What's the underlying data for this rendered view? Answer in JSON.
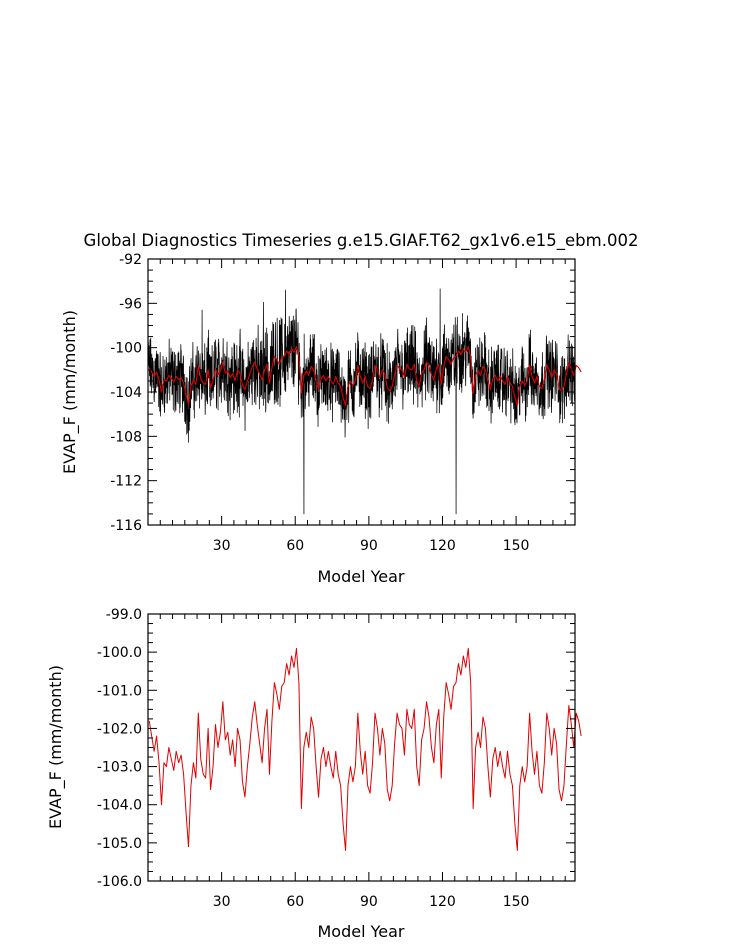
{
  "chart_data": [
    {
      "type": "line",
      "title": "Global Diagnostics Timeseries g.e15.GIAF.T62_gx1v6.e15_ebm.002",
      "xlabel": "Model Year",
      "ylabel": "EVAP_F (mm/month)",
      "xlim": [
        0,
        174
      ],
      "ylim": [
        -116,
        -92
      ],
      "xticks": [
        30,
        60,
        90,
        120,
        150
      ],
      "xtick_labels": [
        "30",
        "60",
        "90",
        "120",
        "150"
      ],
      "yticks": [
        -116,
        -112,
        -108,
        -104,
        -100,
        -96,
        -92
      ],
      "ytick_labels": [
        "-116",
        "-112",
        "-108",
        "-104",
        "-100",
        "-96",
        "-92"
      ],
      "grid": false,
      "series": [
        {
          "color": "#000000",
          "style": "monthly",
          "values_note": "",
          "annual_mean_source": "series 1 of chart 2",
          "amplitude_levels": [
            [
              0,
              3.2
            ],
            [
              20,
              3.5
            ],
            [
              40,
              3.8
            ],
            [
              55,
              4.2
            ],
            [
              62,
              4.0
            ],
            [
              66,
              3.4
            ],
            [
              80,
              3.4
            ],
            [
              100,
              3.6
            ],
            [
              118,
              4.0
            ],
            [
              124,
              3.8
            ],
            [
              128,
              3.4
            ],
            [
              150,
              3.4
            ],
            [
              174,
              3.4
            ]
          ],
          "spikes": [
            [
              63.5,
              -115.0
            ],
            [
              125.5,
              -115.0
            ],
            [
              56,
              -94.8
            ],
            [
              119,
              -94.7
            ],
            [
              22,
              -96.6
            ],
            [
              47,
              -95.9
            ]
          ]
        },
        {
          "color": "#e00000",
          "style": "annual",
          "same_as": "chart 2 series 1"
        }
      ]
    },
    {
      "type": "line",
      "title": "",
      "xlabel": "Model Year",
      "ylabel": "EVAP_F (mm/month)",
      "xlim": [
        0,
        174
      ],
      "ylim": [
        -106,
        -99
      ],
      "xticks": [
        30,
        60,
        90,
        120,
        150
      ],
      "xtick_labels": [
        "30",
        "60",
        "90",
        "120",
        "150"
      ],
      "yticks": [
        -106,
        -105,
        -104,
        -103,
        -102,
        -101,
        -100,
        -99
      ],
      "ytick_labels": [
        "-106.0",
        "-105.0",
        "-104.0",
        "-103.0",
        "-102.0",
        "-101.0",
        "-100.0",
        "-99.0"
      ],
      "grid": false,
      "series": [
        {
          "color": "#e00000",
          "x_start": 0.5,
          "x_step": 1,
          "values": [
            -101.8,
            -102.2,
            -102.6,
            -102.2,
            -102.9,
            -104.0,
            -102.9,
            -103.0,
            -102.5,
            -102.8,
            -103.1,
            -102.6,
            -102.9,
            -102.7,
            -103.2,
            -104.2,
            -105.1,
            -103.5,
            -102.9,
            -103.3,
            -101.6,
            -102.8,
            -103.2,
            -103.3,
            -102.0,
            -103.6,
            -103.0,
            -101.9,
            -102.5,
            -102.1,
            -101.3,
            -102.3,
            -102.1,
            -102.7,
            -102.3,
            -103.0,
            -102.0,
            -102.3,
            -103.4,
            -103.8,
            -103.0,
            -102.4,
            -101.7,
            -101.3,
            -101.9,
            -102.4,
            -102.9,
            -102.0,
            -101.5,
            -103.2,
            -101.8,
            -100.8,
            -101.1,
            -101.5,
            -100.9,
            -100.8,
            -100.3,
            -100.6,
            -100.1,
            -100.4,
            -99.9,
            -100.8,
            -104.1,
            -102.5,
            -102.1,
            -102.5,
            -101.7,
            -102.0,
            -103.0,
            -103.8,
            -102.8,
            -102.5,
            -103.0,
            -102.6,
            -103.0,
            -103.3,
            -102.6,
            -103.2,
            -103.5,
            -104.5,
            -105.2,
            -103.5,
            -103.0,
            -103.4,
            -103.0,
            -101.6,
            -102.6,
            -103.2,
            -102.6,
            -103.5,
            -103.7,
            -102.9,
            -101.6,
            -102.0,
            -102.7,
            -102.0,
            -102.4,
            -103.6,
            -103.9,
            -103.5,
            -102.4,
            -101.6,
            -101.9,
            -102.0,
            -102.7,
            -101.5,
            -101.9,
            -102.0,
            -101.5,
            -103.0,
            -103.5,
            -102.3,
            -102.0,
            -101.3,
            -101.7,
            -102.5,
            -102.9,
            -101.9,
            -101.5,
            -103.3,
            -101.7,
            -100.8,
            -101.1,
            -101.5,
            -100.9,
            -100.8,
            -100.3,
            -100.6,
            -100.1,
            -100.4,
            -99.9,
            -100.8,
            -104.1,
            -102.5,
            -102.1,
            -102.5,
            -101.7,
            -102.0,
            -103.0,
            -103.8,
            -102.8,
            -102.5,
            -103.0,
            -102.6,
            -103.0,
            -103.3,
            -102.6,
            -103.2,
            -103.5,
            -104.5,
            -105.2,
            -103.5,
            -103.0,
            -103.4,
            -103.0,
            -101.6,
            -102.6,
            -103.2,
            -102.6,
            -103.5,
            -103.7,
            -102.9,
            -101.6,
            -102.0,
            -102.7,
            -102.0,
            -102.4,
            -103.6,
            -103.9,
            -103.5,
            -102.4,
            -101.4,
            -101.9,
            -102.5,
            -101.6,
            -101.8,
            -102.2
          ]
        }
      ]
    }
  ]
}
